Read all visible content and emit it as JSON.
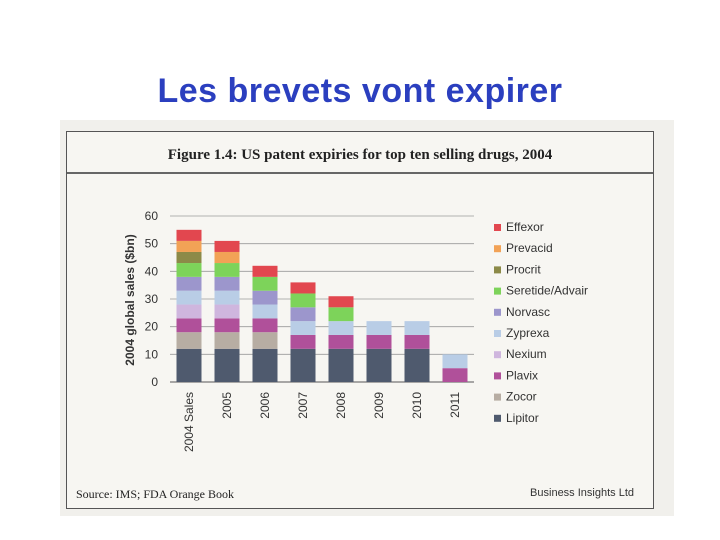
{
  "slide_title": "Les brevets vont expirer",
  "chart_data": {
    "type": "bar",
    "stacked": true,
    "title": "Figure 1.4:  US patent expiries for top ten selling drugs, 2004",
    "xlabel": "",
    "ylabel": "2004 global sales ($bn)",
    "ylim": [
      0,
      60
    ],
    "yticks": [
      "0",
      "10",
      "20",
      "30",
      "40",
      "50",
      "60"
    ],
    "grid": true,
    "legend_position": "right",
    "categories": [
      "2004 Sales",
      "2005",
      "2006",
      "2007",
      "2008",
      "2009",
      "2010",
      "2011"
    ],
    "series": [
      {
        "name": "Lipitor",
        "color": "#4f5a6e",
        "values": [
          12,
          12,
          12,
          12,
          12,
          12,
          12,
          0
        ]
      },
      {
        "name": "Zocor",
        "color": "#b7ada3",
        "values": [
          6,
          6,
          6,
          0,
          0,
          0,
          0,
          0
        ]
      },
      {
        "name": "Plavix",
        "color": "#b0509a",
        "values": [
          5,
          5,
          5,
          5,
          5,
          5,
          5,
          5
        ]
      },
      {
        "name": "Nexium",
        "color": "#cfb6de",
        "values": [
          5,
          5,
          0,
          0,
          0,
          0,
          0,
          0
        ]
      },
      {
        "name": "Zyprexa",
        "color": "#b9cde6",
        "values": [
          5,
          5,
          5,
          5,
          5,
          5,
          5,
          5
        ]
      },
      {
        "name": "Norvasc",
        "color": "#9c96cc",
        "values": [
          5,
          5,
          5,
          5,
          0,
          0,
          0,
          0
        ]
      },
      {
        "name": "Seretide/Advair",
        "color": "#7dd35a",
        "values": [
          5,
          5,
          5,
          5,
          5,
          0,
          0,
          0
        ]
      },
      {
        "name": "Procrit",
        "color": "#8c8a48",
        "values": [
          4,
          0,
          0,
          0,
          0,
          0,
          0,
          0
        ]
      },
      {
        "name": "Prevacid",
        "color": "#f2a256",
        "values": [
          4,
          4,
          0,
          0,
          0,
          0,
          0,
          0
        ]
      },
      {
        "name": "Effexor",
        "color": "#e2474f",
        "values": [
          4,
          4,
          4,
          4,
          4,
          0,
          0,
          0
        ]
      }
    ],
    "legend_order": [
      "Effexor",
      "Prevacid",
      "Procrit",
      "Seretide/Advair",
      "Norvasc",
      "Zyprexa",
      "Nexium",
      "Plavix",
      "Zocor",
      "Lipitor"
    ]
  },
  "source": "Source: IMS; FDA Orange Book",
  "publisher": "Business Insights Ltd"
}
